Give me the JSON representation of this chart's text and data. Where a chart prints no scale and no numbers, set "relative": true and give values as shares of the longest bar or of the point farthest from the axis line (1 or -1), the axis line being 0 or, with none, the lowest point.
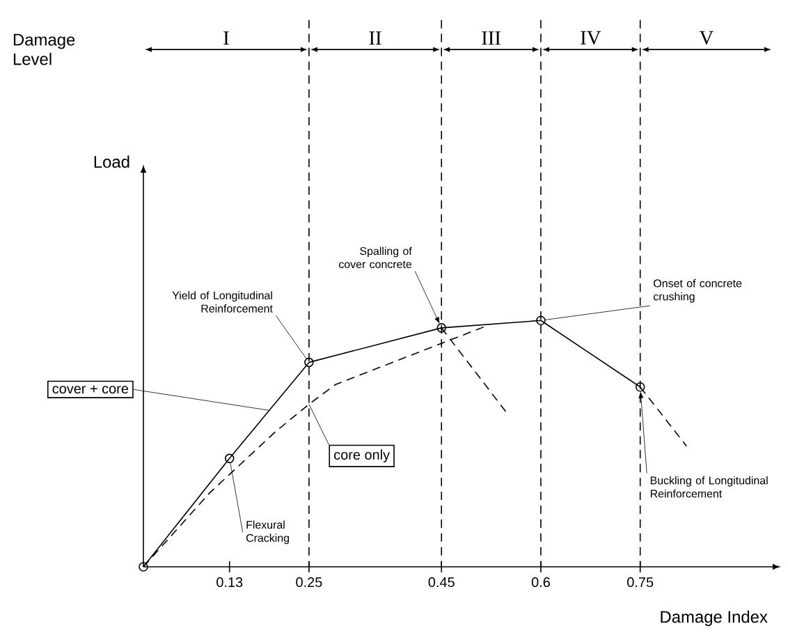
{
  "chart_data": {
    "type": "line",
    "relative": true,
    "xlabel": "Damage Index",
    "xlim": [
      0,
      0.95
    ],
    "xticks": [
      0.13,
      0.25,
      0.45,
      0.6,
      0.75
    ],
    "series": [
      {
        "name": "cover + core",
        "color": "#000000",
        "x": [
          0,
          0.13,
          0.25,
          0.45,
          0.6,
          0.75
        ],
        "values": [
          0,
          0.44,
          0.83,
          0.97,
          1,
          0.73
        ],
        "marker": "circle",
        "line_style": "solid"
      },
      {
        "color": "#000000",
        "x": [
          0.45,
          0.55
        ],
        "values": [
          0.97,
          0.62
        ],
        "line_style": "dashed"
      },
      {
        "color": "#000000",
        "x": [
          0.75,
          0.82
        ],
        "values": [
          0.73,
          0.49
        ],
        "line_style": "dashed"
      },
      {
        "name": "core only",
        "color": "#000000",
        "x": [
          0,
          0.1,
          0.2,
          0.25,
          0.29,
          0.52
        ],
        "values": [
          0,
          0.3,
          0.55,
          0.66,
          0.74,
          0.98
        ],
        "line_style": "dashed"
      }
    ],
    "ref_lines": [
      {
        "axis": "x",
        "value": 0.25,
        "line_style": "dashed"
      },
      {
        "axis": "x",
        "value": 0.45,
        "line_style": "dashed"
      },
      {
        "axis": "x",
        "value": 0.6,
        "line_style": "dashed"
      },
      {
        "axis": "x",
        "value": 0.75,
        "line_style": "dashed"
      }
    ],
    "annotations": [
      "Damage Level",
      "I",
      "II",
      "III",
      "IV",
      "V",
      "Load",
      {
        "text": "Flexural Cracking",
        "x": 0.13,
        "y": 0.44
      },
      {
        "text": "Yield of Longitudinal Reinforcement",
        "x": 0.25,
        "y": 0.83
      },
      {
        "text": "Spalling of cover concrete",
        "x": 0.45,
        "y": 0.97
      },
      {
        "text": "Onset of concrete crushing",
        "x": 0.6,
        "y": 1
      },
      {
        "text": "Buckling of Longitudinal Reinforcement",
        "x": 0.75,
        "y": 0.73
      }
    ]
  }
}
